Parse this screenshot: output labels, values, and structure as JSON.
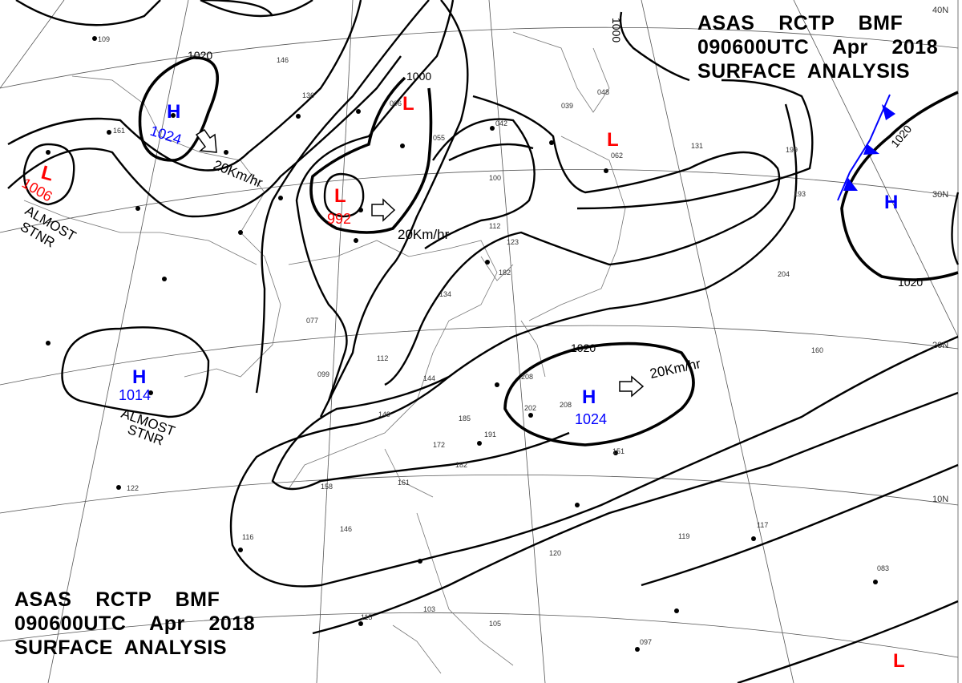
{
  "header": {
    "line1": "ASAS    RCTP    BMF",
    "line2": "090600UTC    Apr    2018",
    "line3": "SURFACE  ANALYSIS"
  },
  "footer": {
    "line1": "ASAS    RCTP    BMF",
    "line2": "090600UTC    Apr    2018",
    "line3": "SURFACE  ANALYSIS"
  },
  "latitude_labels": [
    "40N",
    "30N",
    "20N",
    "10N"
  ],
  "pressure_centers": [
    {
      "type": "H",
      "value": "1024",
      "color": "#0000ff"
    },
    {
      "type": "L",
      "value": "1006",
      "color": "#ff0000",
      "motion": "ALMOST STNR"
    },
    {
      "type": "L",
      "value": "992",
      "color": "#ff0000",
      "motion": "20Km/hr"
    },
    {
      "type": "L",
      "value": "",
      "color": "#ff0000"
    },
    {
      "type": "L",
      "value": "",
      "color": "#ff0000"
    },
    {
      "type": "H",
      "value": "",
      "color": "#0000ff"
    },
    {
      "type": "H",
      "value": "1014",
      "color": "#0000ff",
      "motion": "ALMOST STNR"
    },
    {
      "type": "H",
      "value": "1024",
      "color": "#0000ff",
      "motion": "20Km/hr"
    },
    {
      "type": "L",
      "value": "",
      "color": "#ff0000"
    }
  ],
  "isobar_labels": [
    "1020",
    "1000",
    "1000",
    "1020",
    "1020",
    "1020"
  ],
  "motion_labels": [
    "20Km/hr",
    "20Km/hr",
    "20Km/hr"
  ],
  "stationary_labels": [
    "ALMOST\nSTNR",
    "ALMOST\nSTNR"
  ],
  "front": {
    "type": "cold",
    "color": "#0000ff"
  },
  "stations": [
    "109",
    "161",
    "146",
    "136",
    "006",
    "055",
    "042",
    "039",
    "048",
    "062",
    "131",
    "199",
    "193",
    "204",
    "100",
    "112",
    "123",
    "182",
    "134",
    "077",
    "099",
    "112",
    "144",
    "185",
    "191",
    "172",
    "182",
    "161",
    "158",
    "149",
    "146",
    "116",
    "122",
    "208",
    "202",
    "208",
    "151",
    "160",
    "117",
    "119",
    "083",
    "097",
    "115",
    "103",
    "105",
    "120"
  ],
  "colors": {
    "high": "#0000ff",
    "low": "#ff0000",
    "isobar": "#000000",
    "front": "#0000ff"
  }
}
